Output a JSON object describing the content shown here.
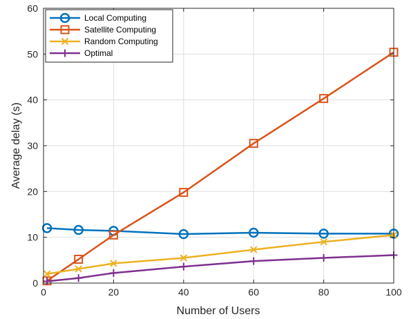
{
  "chart_data": {
    "type": "line",
    "xlabel": "Number of Users",
    "ylabel": "Average delay (s)",
    "xlim": [
      0,
      100
    ],
    "ylim": [
      0,
      60
    ],
    "xticks": [
      0,
      20,
      40,
      60,
      80,
      100
    ],
    "yticks": [
      0,
      10,
      20,
      30,
      40,
      50,
      60
    ],
    "grid": true,
    "legend_position": "top-left",
    "series": [
      {
        "name": "Local Computing",
        "color": "#0072BD",
        "marker": "circle",
        "x": [
          1,
          10,
          20,
          40,
          60,
          80,
          100
        ],
        "y": [
          12.0,
          11.6,
          11.4,
          10.7,
          11.0,
          10.8,
          10.8
        ]
      },
      {
        "name": "Satellite Computing",
        "color": "#D95319",
        "marker": "square",
        "x": [
          1,
          10,
          20,
          40,
          60,
          80,
          100
        ],
        "y": [
          0.5,
          5.2,
          10.5,
          19.8,
          30.5,
          40.3,
          50.4
        ]
      },
      {
        "name": "Random Computing",
        "color": "#EDB120",
        "marker": "x",
        "x": [
          1,
          10,
          20,
          40,
          60,
          80,
          100
        ],
        "y": [
          2.0,
          3.1,
          4.3,
          5.5,
          7.3,
          9.0,
          10.5
        ]
      },
      {
        "name": "Optimal",
        "color": "#7E2F8E",
        "marker": "plus",
        "x": [
          1,
          10,
          20,
          40,
          60,
          80,
          100
        ],
        "y": [
          0.4,
          1.1,
          2.2,
          3.6,
          4.8,
          5.5,
          6.1
        ]
      }
    ]
  }
}
